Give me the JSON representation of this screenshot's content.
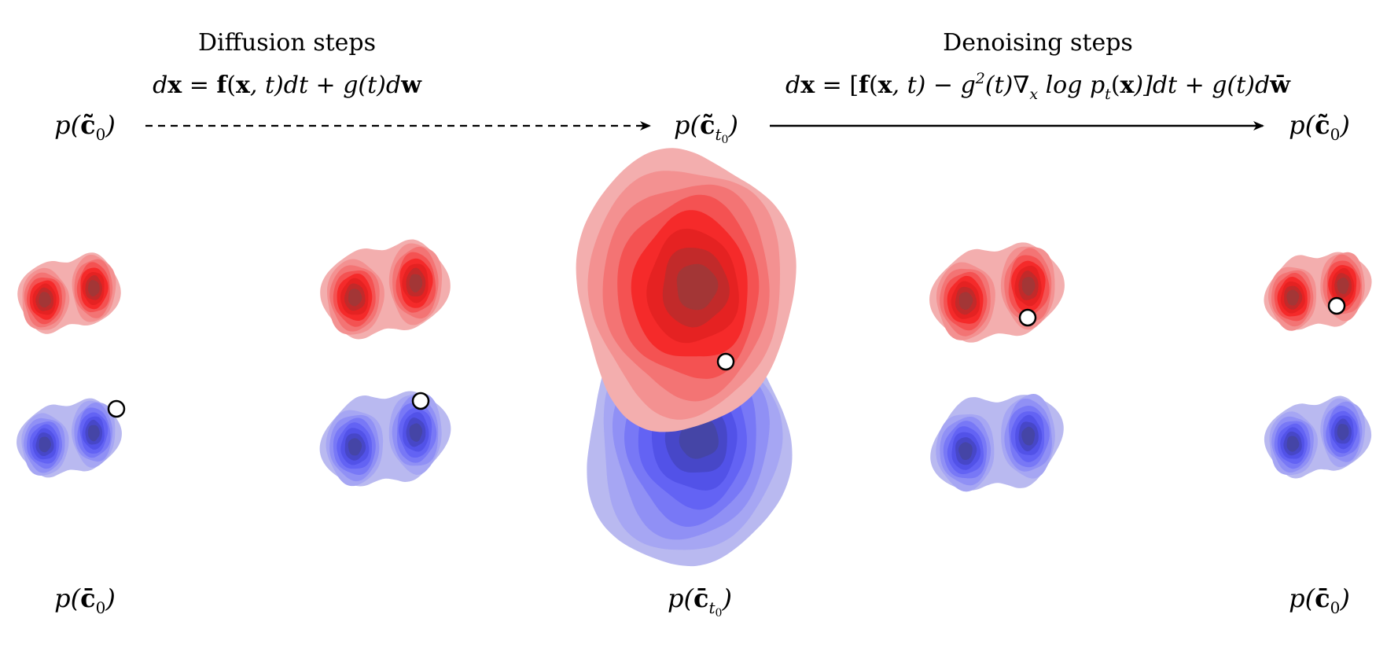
{
  "header": {
    "diffusion": {
      "title": "Diffusion steps",
      "eq_parts": [
        "d",
        "x",
        " = ",
        "f",
        "(",
        "x",
        ", t)dt + g(t)d",
        "w"
      ]
    },
    "denoising": {
      "title": "Denoising steps",
      "eq_parts": [
        "d",
        "x",
        " = [",
        "f",
        "(",
        "x",
        ", t) − g",
        "2",
        "(t)∇",
        "x",
        " log p",
        "t",
        "(",
        "x",
        ")]dt + g(t)d",
        "w̄"
      ]
    }
  },
  "labels": {
    "c_tilde_0_left": {
      "pre": "p(",
      "sym": "c̃",
      "sub": "0",
      "subsub": "",
      "post": ")"
    },
    "c_tilde_t0": {
      "pre": "p(",
      "sym": "c̃",
      "sub": "t",
      "subsub": "0",
      "post": ")"
    },
    "c_tilde_0_right": {
      "pre": "p(",
      "sym": "c̃",
      "sub": "0",
      "subsub": "",
      "post": ")"
    },
    "c_bar_0_left": {
      "pre": "p(",
      "sym": "c̄",
      "sub": "0",
      "subsub": "",
      "post": ")"
    },
    "c_bar_t0": {
      "pre": "p(",
      "sym": "c̄",
      "sub": "t",
      "subsub": "0",
      "post": ")"
    },
    "c_bar_0_right": {
      "pre": "p(",
      "sym": "c̄",
      "sub": "0",
      "subsub": "",
      "post": ")"
    }
  },
  "colors": {
    "red_ramp": [
      "#f3aeae",
      "#f39191",
      "#f37474",
      "#f45252",
      "#f52a2a",
      "#e52222",
      "#c22a2a",
      "#a33636"
    ],
    "blue_ramp": [
      "#b9b9f0",
      "#a6a6f3",
      "#9090f5",
      "#7878f6",
      "#6363f4",
      "#5252e8",
      "#4747c8",
      "#4545a6"
    ],
    "marker_fill": "#ffffff",
    "marker_stroke": "#000000"
  },
  "icons": {
    "diffusion_arrow": "dashed-arrow-right-icon",
    "denoising_arrow": "solid-arrow-right-icon",
    "sample_marker": "white-circle-marker-icon"
  }
}
